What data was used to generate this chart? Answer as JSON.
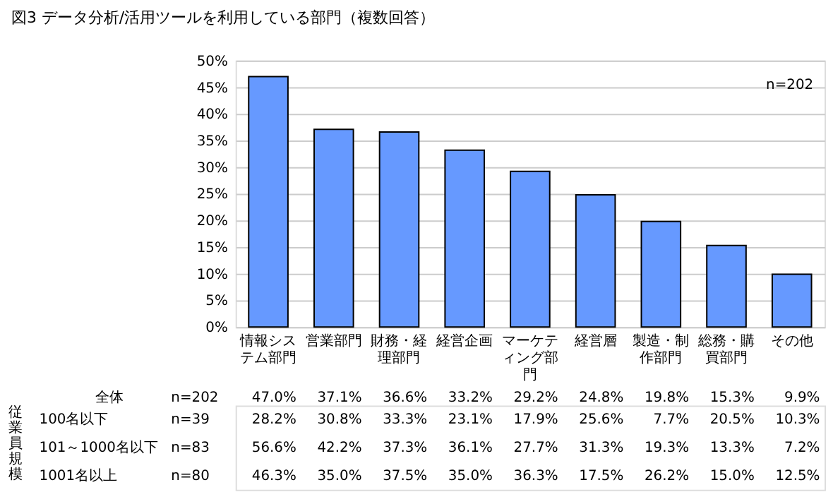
{
  "chart_data": [
    {
      "type": "bar",
      "title": "図3 データ分析/活用ツールを利用している部門（複数回答）",
      "categories": [
        "情報システム部門",
        "営業部門",
        "財務・経理部門",
        "経営企画",
        "マーケティング部門",
        "経営層",
        "製造・制作部門",
        "総務・購買部門",
        "その他"
      ],
      "series": [
        {
          "name": "全体",
          "type": "bar",
          "color": "#6699ff",
          "values": [
            47.0,
            37.1,
            36.6,
            33.2,
            29.2,
            24.8,
            19.8,
            15.3,
            9.9
          ],
          "value_labels": [
            "47.0%",
            "37.1%",
            "36.6%",
            "33.2%",
            "29.2%",
            "24.8%",
            "19.8%",
            "15.3%",
            "9.9%"
          ]
        }
      ],
      "annotations": [
        "n=202",
        "n=202"
      ],
      "ylim": [
        0,
        50
      ],
      "yticks": [
        {
          "value": 0,
          "label": "0%"
        },
        {
          "value": 5,
          "label": "5%"
        },
        {
          "value": 10,
          "label": "10%"
        },
        {
          "value": 15,
          "label": "15%"
        },
        {
          "value": 20,
          "label": "20%"
        },
        {
          "value": 25,
          "label": "25%"
        },
        {
          "value": 30,
          "label": "30%"
        },
        {
          "value": 35,
          "label": "35%"
        },
        {
          "value": 40,
          "label": "40%"
        },
        {
          "value": 45,
          "label": "45%"
        },
        {
          "value": 50,
          "label": "50%"
        }
      ],
      "grid": "y"
    },
    {
      "type": "other",
      "annotations": [
        "従業員規模",
        "100名以下",
        "n=39",
        "28.2%",
        "30.8%",
        "33.3%",
        "23.1%",
        "17.9%",
        "25.6%",
        "7.7%",
        "20.5%",
        "10.3%",
        "101～1000名以下",
        "n=83",
        "56.6%",
        "42.2%",
        "37.3%",
        "36.1%",
        "27.7%",
        "31.3%",
        "19.3%",
        "13.3%",
        "7.2%",
        "1001名以上",
        "n=80",
        "46.3%",
        "35.0%",
        "37.5%",
        "35.0%",
        "36.3%",
        "17.5%",
        "26.2%",
        "15.0%",
        "12.5%"
      ]
    }
  ]
}
